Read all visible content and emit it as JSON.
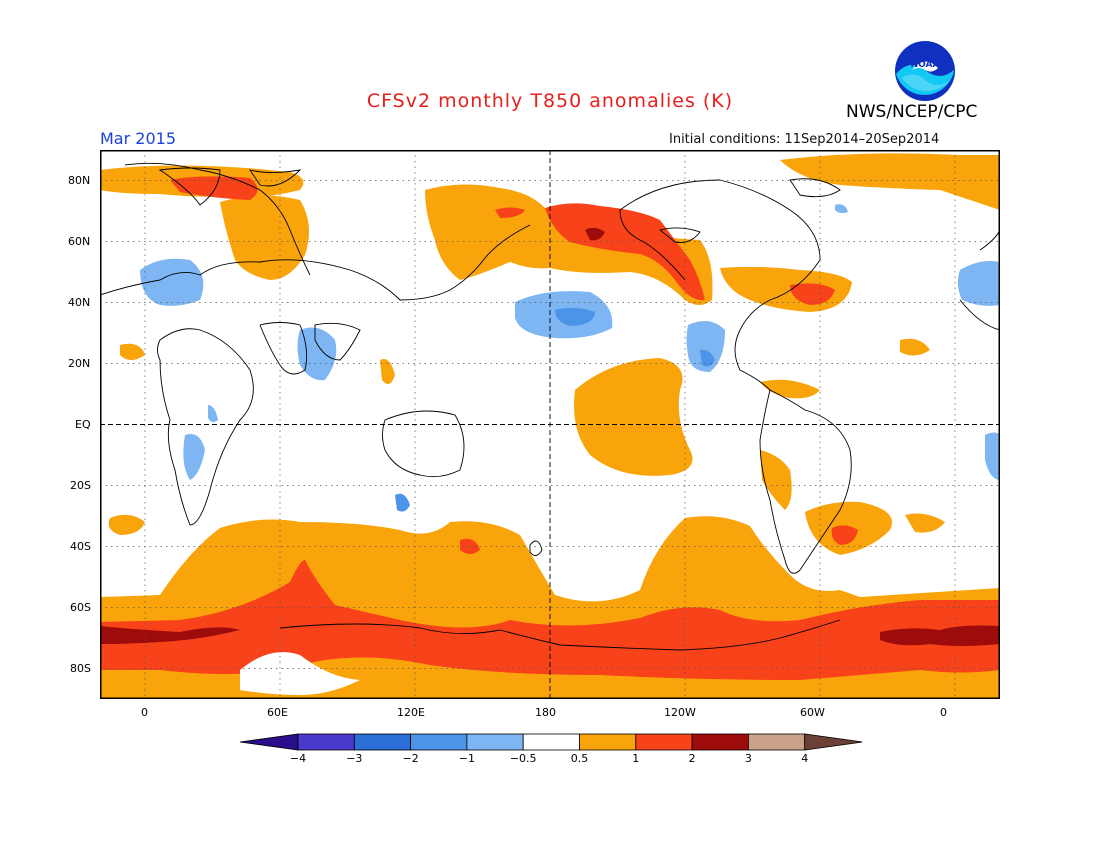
{
  "header": {
    "title": "CFSv2 monthly T850 anomalies (K)",
    "agency": "NWS/NCEP/CPC",
    "period": "Mar 2015",
    "initial_conditions": "Initial conditions: 11Sep2014–20Sep2014"
  },
  "logo": {
    "text": "NOAA"
  },
  "map": {
    "lat_labels": [
      "80N",
      "60N",
      "40N",
      "20N",
      "EQ",
      "20S",
      "40S",
      "60S",
      "80S"
    ],
    "lon_labels": [
      "0",
      "60E",
      "120E",
      "180",
      "120W",
      "60W",
      "0"
    ]
  },
  "colorbar": {
    "labels": [
      "−4",
      "−3",
      "−2",
      "−1",
      "−0.5",
      "0.5",
      "1",
      "2",
      "3",
      "4"
    ],
    "colors": [
      "#2a0d8a",
      "#4a3acb",
      "#2b6fd6",
      "#4b94e8",
      "#7db6f2",
      "#ffffff",
      "#f9a40a",
      "#f8421a",
      "#9e0b0b",
      "#c9a089",
      "#6b4036"
    ]
  },
  "palette": {
    "land_line": "#000000",
    "grid": "#333333",
    "light_orange": "#f9a40a",
    "orange_red": "#f8421a",
    "dark_red": "#9e0b0b",
    "light_blue": "#7db6f2",
    "mid_blue": "#4b94e8"
  }
}
